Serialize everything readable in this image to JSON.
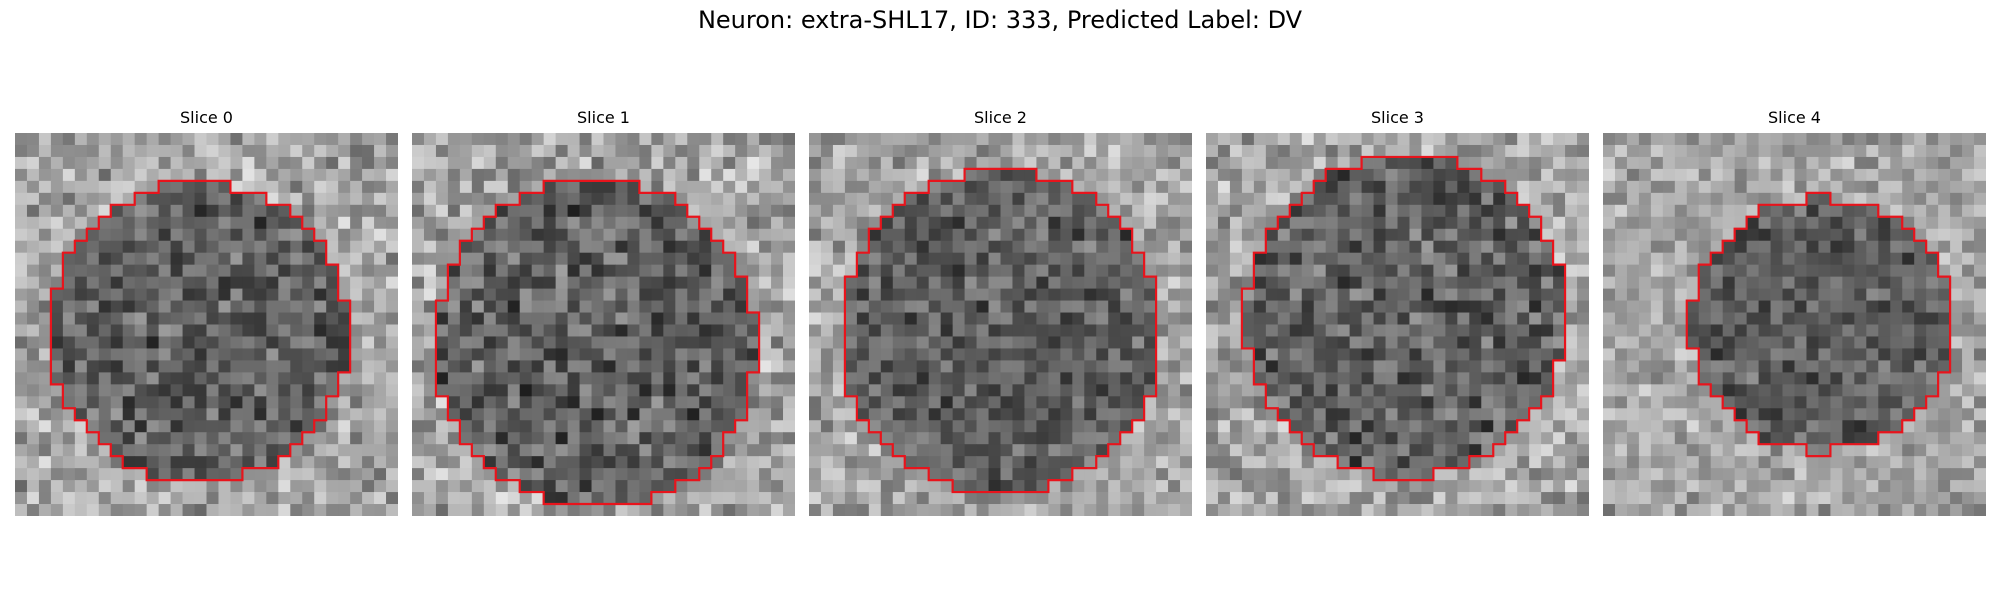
{
  "figure": {
    "title": "Neuron: extra-SHL17, ID: 333, Predicted Label: DV",
    "contour_color": "#e8141c",
    "slices": [
      {
        "label": "Slice 0",
        "seed": 11,
        "center": [
          0.48,
          0.52
        ],
        "radius": [
          0.39,
          0.39
        ],
        "contrast": 0.55
      },
      {
        "label": "Slice 1",
        "seed": 23,
        "center": [
          0.48,
          0.55
        ],
        "radius": [
          0.42,
          0.43
        ],
        "contrast": 0.6
      },
      {
        "label": "Slice 2",
        "seed": 37,
        "center": [
          0.5,
          0.52
        ],
        "radius": [
          0.42,
          0.42
        ],
        "contrast": 0.5
      },
      {
        "label": "Slice 3",
        "seed": 41,
        "center": [
          0.52,
          0.48
        ],
        "radius": [
          0.42,
          0.42
        ],
        "contrast": 0.55
      },
      {
        "label": "Slice 4",
        "seed": 53,
        "center": [
          0.57,
          0.5
        ],
        "radius": [
          0.34,
          0.33
        ],
        "contrast": 0.45
      }
    ]
  }
}
